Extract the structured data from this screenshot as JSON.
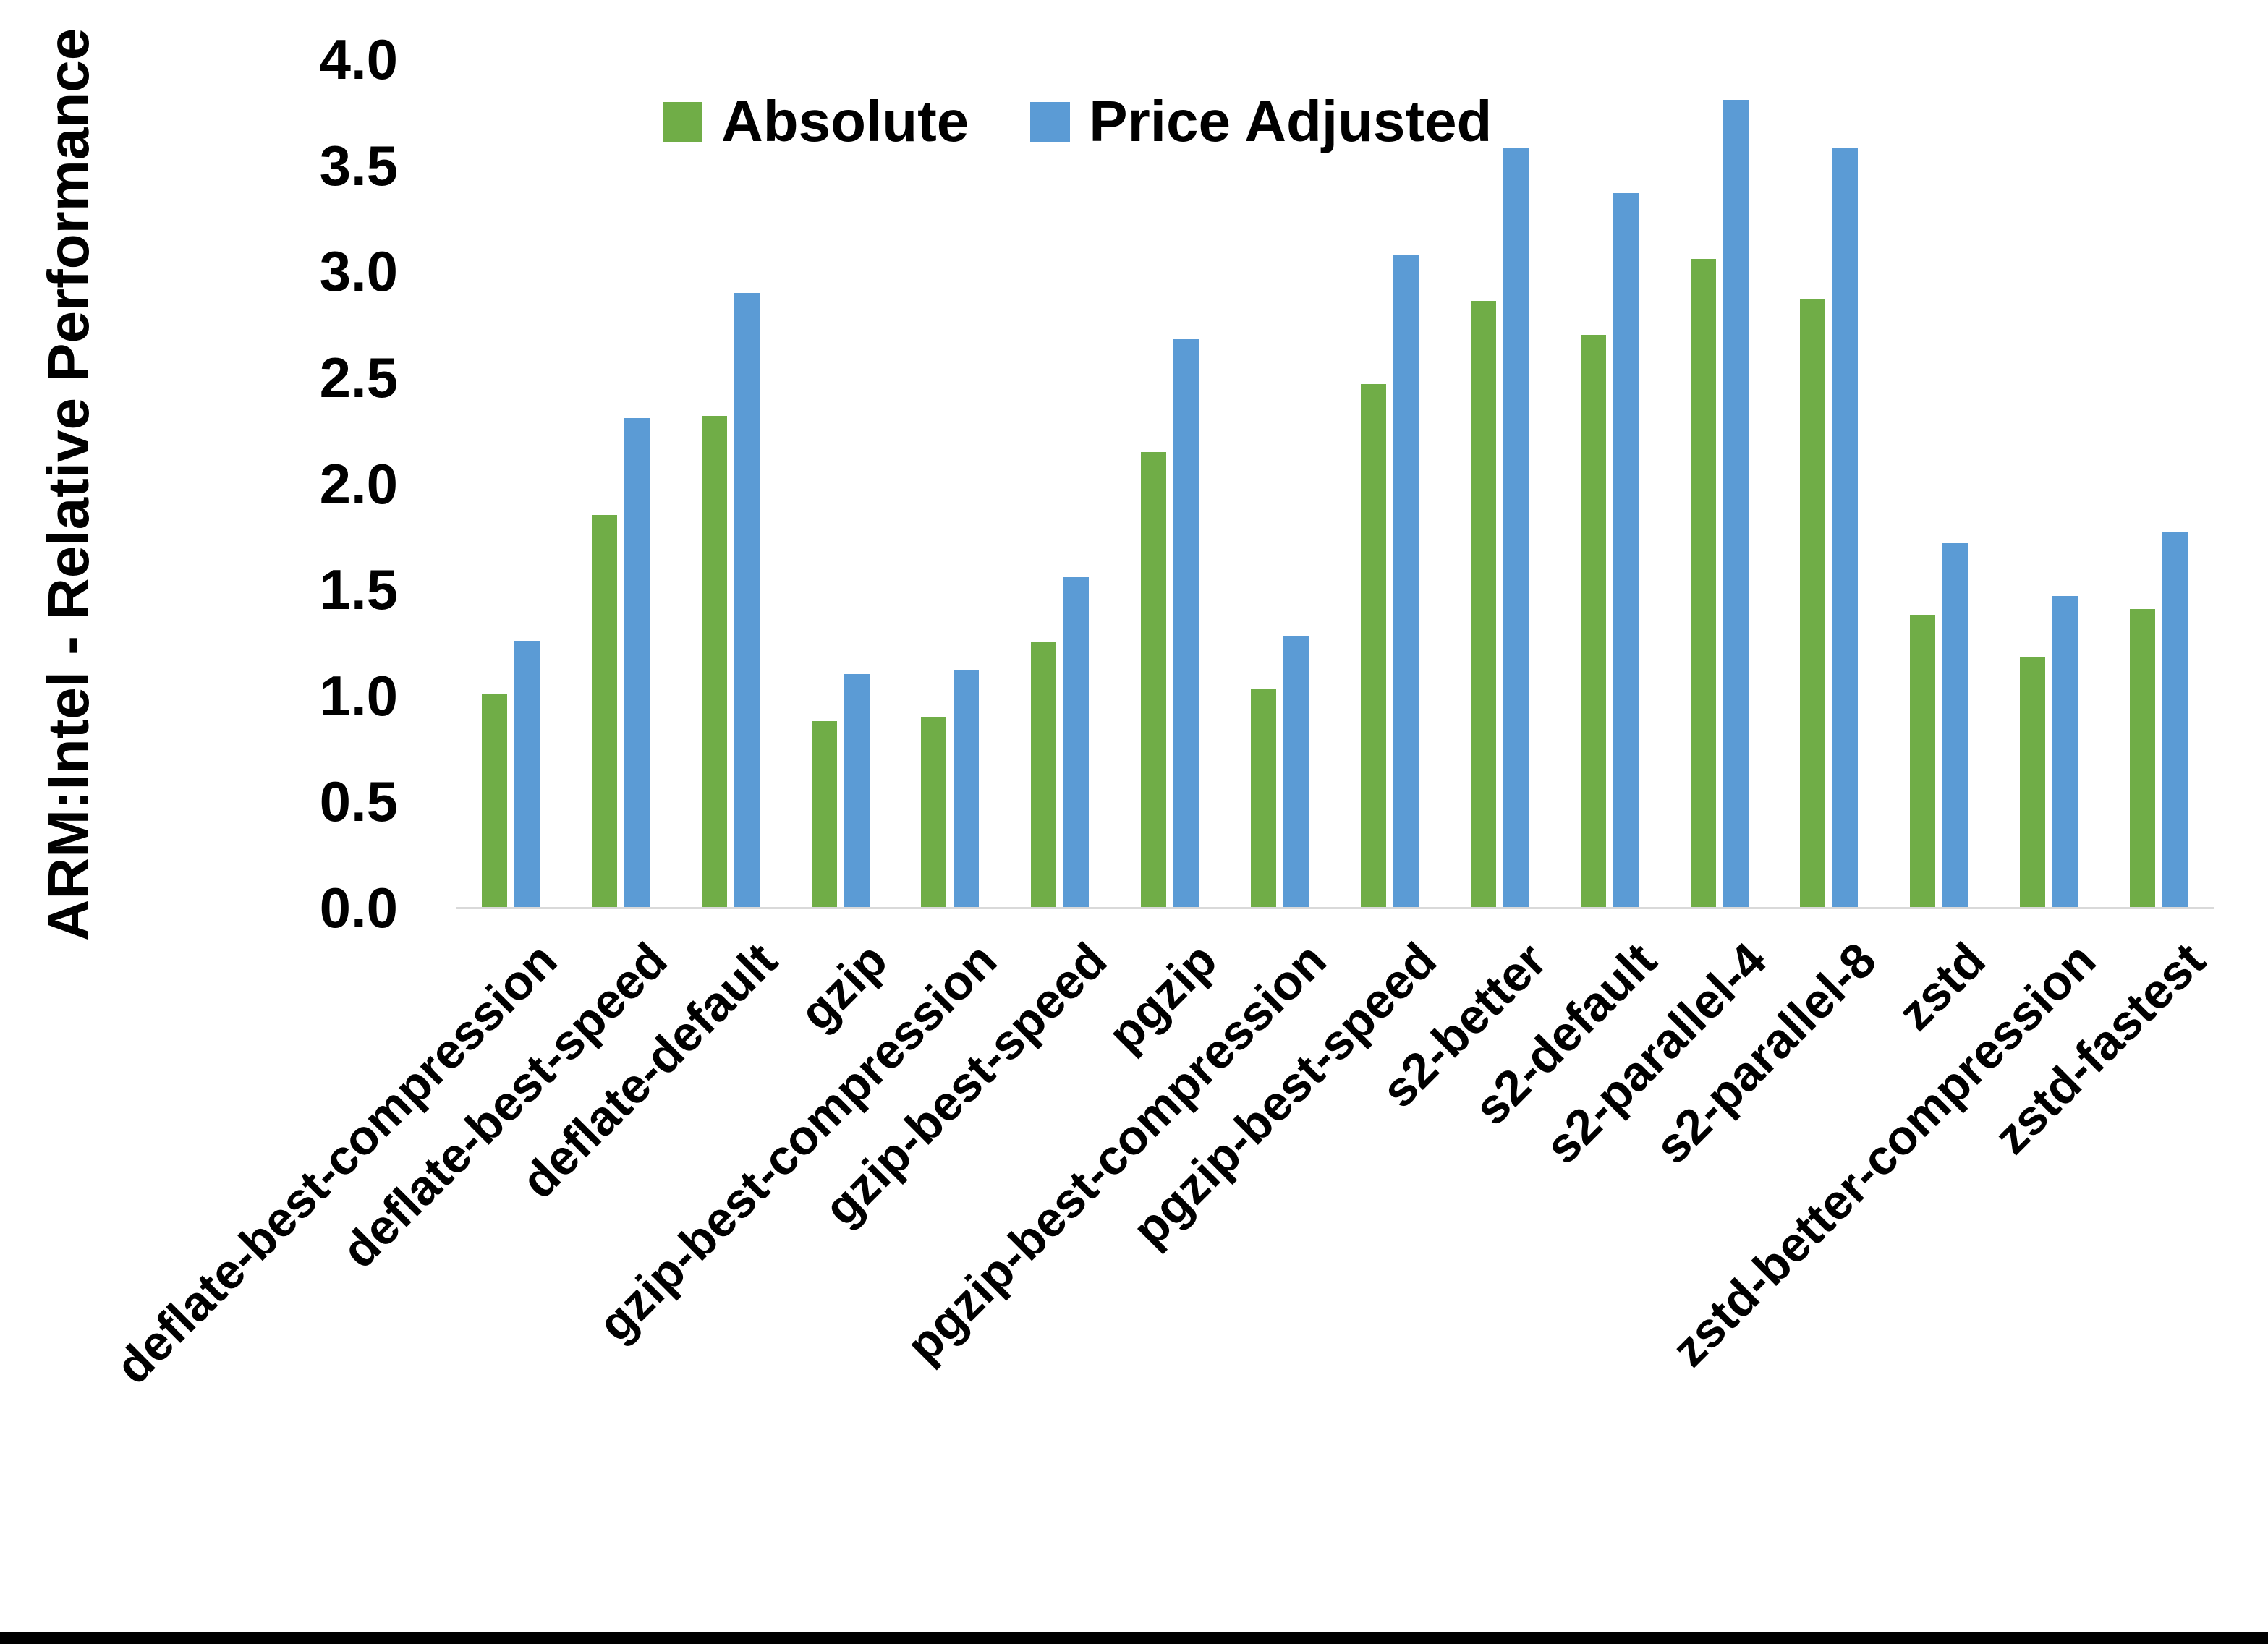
{
  "chart_data": {
    "type": "bar",
    "title": "",
    "xlabel": "",
    "ylabel": "ARM:Intel - Relative Performance",
    "ylim": [
      0.0,
      4.0
    ],
    "ytick_step": 0.5,
    "ytick_labels": [
      "0.0",
      "0.5",
      "1.0",
      "1.5",
      "2.0",
      "2.5",
      "3.0",
      "3.5",
      "4.0"
    ],
    "grid": false,
    "legend_position": "top-center",
    "categories": [
      "deflate-best-compression",
      "deflate-best-speed",
      "deflate-default",
      "gzip",
      "gzip-best-compression",
      "gzip-best-speed",
      "pgzip",
      "pgzip-best-compression",
      "pgzip-best-speed",
      "s2-better",
      "s2-default",
      "s2-parallel-4",
      "s2-parallel-8",
      "zstd",
      "zstd-better-compression",
      "zstd-fastest"
    ],
    "series": [
      {
        "name": "Absolute",
        "color": "#70AD47",
        "values": [
          1.01,
          1.85,
          2.32,
          0.88,
          0.9,
          1.25,
          2.15,
          1.03,
          2.47,
          2.86,
          2.7,
          3.06,
          2.87,
          1.38,
          1.18,
          1.41
        ]
      },
      {
        "name": "Price Adjusted",
        "color": "#5B9BD5",
        "values": [
          1.26,
          2.31,
          2.9,
          1.1,
          1.12,
          1.56,
          2.68,
          1.28,
          3.08,
          3.58,
          3.37,
          3.81,
          3.58,
          1.72,
          1.47,
          1.77
        ]
      }
    ]
  },
  "colors": {
    "axis_line": "#d9d9d9",
    "text": "#000000",
    "background": "#ffffff",
    "bottom_border": "#000000"
  }
}
